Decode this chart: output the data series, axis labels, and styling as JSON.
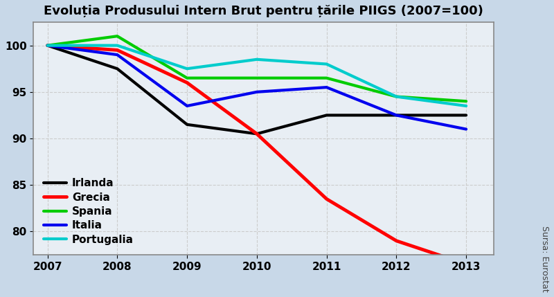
{
  "title": "Evoluția Produsului Intern Brut pentru țările PIIGS (2007=100)",
  "years": [
    2007,
    2008,
    2009,
    2010,
    2011,
    2012,
    2013
  ],
  "series": {
    "Irlanda": {
      "values": [
        100,
        97.5,
        91.5,
        90.5,
        92.5,
        92.5,
        92.5
      ],
      "color": "#000000",
      "linewidth": 3.0
    },
    "Grecia": {
      "values": [
        100,
        99.5,
        96.0,
        90.5,
        83.5,
        79.0,
        76.5
      ],
      "color": "#ff0000",
      "linewidth": 3.5
    },
    "Spania": {
      "values": [
        100,
        101.0,
        96.5,
        96.5,
        96.5,
        94.5,
        94.0
      ],
      "color": "#00cc00",
      "linewidth": 3.0
    },
    "Italia": {
      "values": [
        100,
        99.0,
        93.5,
        95.0,
        95.5,
        92.5,
        91.0
      ],
      "color": "#0000ee",
      "linewidth": 3.0
    },
    "Portugalia": {
      "values": [
        100,
        100.0,
        97.5,
        98.5,
        98.0,
        94.5,
        93.5
      ],
      "color": "#00cccc",
      "linewidth": 3.0
    }
  },
  "ylim": [
    77.5,
    102.5
  ],
  "yticks": [
    80,
    85,
    90,
    95,
    100
  ],
  "outer_bg_color": "#c8d8e8",
  "plot_bg_color": "#e8eef4",
  "grid_color": "#cccccc",
  "source_text": "Sursa: Eurostat",
  "legend_order": [
    "Irlanda",
    "Grecia",
    "Spania",
    "Italia",
    "Portugalia"
  ]
}
